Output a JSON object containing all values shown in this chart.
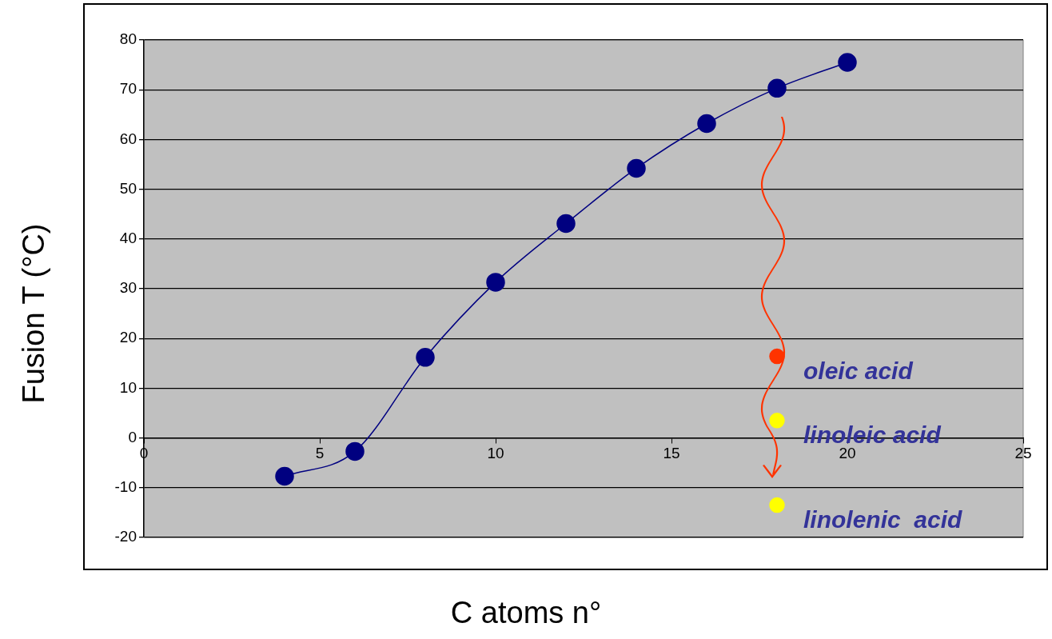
{
  "chart_data": {
    "type": "line",
    "xlabel": "C atoms n°",
    "ylabel": "Fusion T (°C)",
    "xlim": [
      0,
      25
    ],
    "xticks": [
      0,
      5,
      10,
      15,
      20,
      25
    ],
    "ylim": [
      -20,
      80
    ],
    "yticks": [
      -20,
      -10,
      0,
      10,
      20,
      30,
      40,
      50,
      60,
      70,
      80
    ],
    "grid": "y",
    "legend": false,
    "marker": "circle",
    "series": [
      {
        "type": "line",
        "color": "#000080",
        "x": [
          4,
          6,
          8,
          10,
          12,
          14,
          16,
          18,
          20
        ],
        "values": [
          -7.7,
          -2.7,
          16.2,
          31.3,
          43.1,
          54.2,
          63.2,
          70.3,
          75.5
        ]
      },
      {
        "type": "scatter",
        "colors": [
          "#ff3300",
          "#ffff00",
          "#ffff00"
        ],
        "x": [
          18,
          18,
          18
        ],
        "values": [
          16.4,
          3.5,
          -13.5
        ]
      }
    ],
    "annotations": [
      "oleic acid",
      "linoleic acid",
      "linolenic  acid"
    ]
  }
}
